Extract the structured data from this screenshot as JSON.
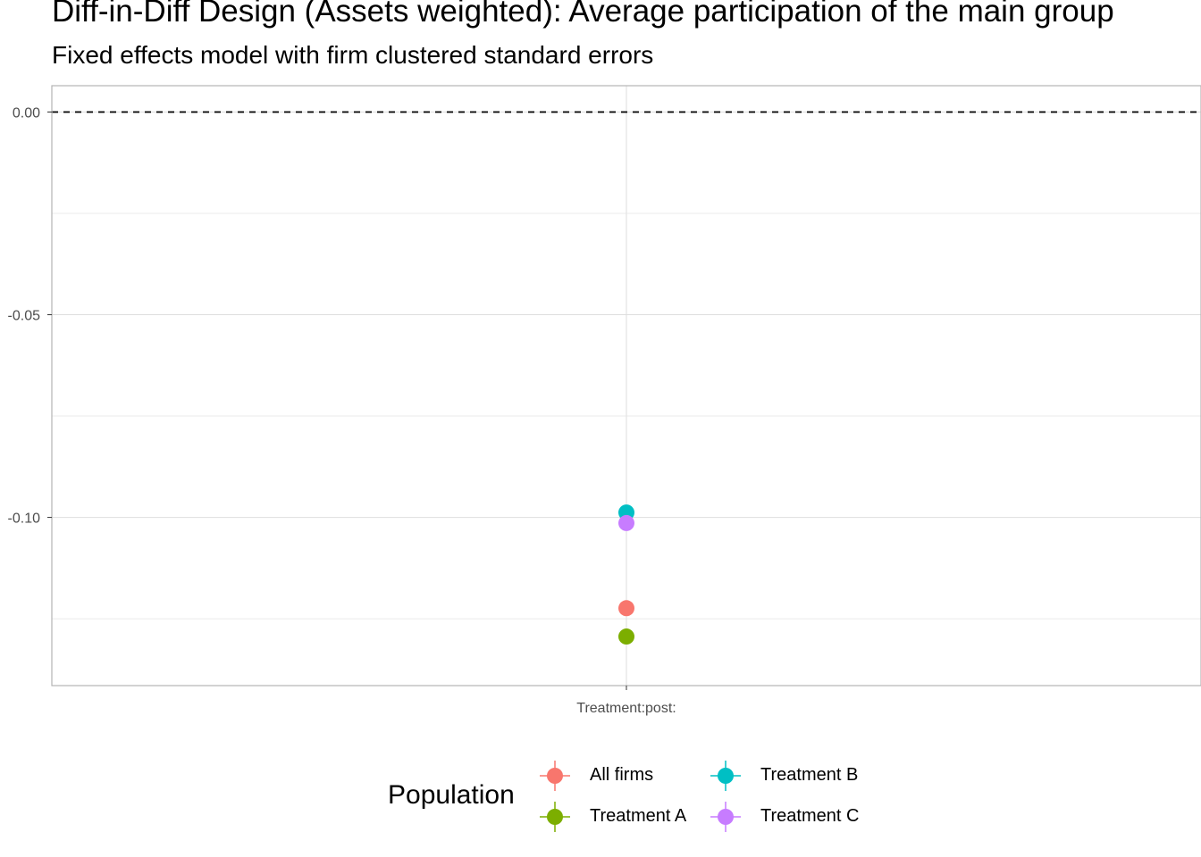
{
  "chart_data": {
    "type": "scatter",
    "title": "Diff-in-Diff Design (Assets weighted): Average participation of the main group",
    "subtitle": "Fixed effects model with firm clustered standard errors",
    "xlabel": "",
    "ylabel": "",
    "categories": [
      "Treatment:post:"
    ],
    "ylim": [
      -0.1415,
      0.0065
    ],
    "y_ticks": [
      0.0,
      -0.05,
      -0.1
    ],
    "y_tick_labels": [
      "0.00",
      "-0.05",
      "-0.10"
    ],
    "reference_line": {
      "y": 0.0,
      "style": "dashed"
    },
    "grid": true,
    "legend_position": "bottom",
    "legend_title": "Population",
    "series": [
      {
        "name": "All firms",
        "color": "#F8766D",
        "values": [
          -0.1224
        ]
      },
      {
        "name": "Treatment A",
        "color": "#7CAE00",
        "values": [
          -0.1294
        ]
      },
      {
        "name": "Treatment B",
        "color": "#00BFC4",
        "values": [
          -0.0988
        ]
      },
      {
        "name": "Treatment C",
        "color": "#C77CFF",
        "values": [
          -0.1014
        ]
      }
    ]
  }
}
